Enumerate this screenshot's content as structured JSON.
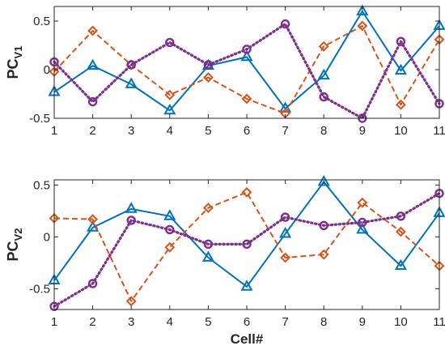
{
  "chart_data": [
    {
      "type": "line",
      "ylabel": "PC",
      "ylabel_subscript": "V1",
      "xlabel": "",
      "x": [
        1,
        2,
        3,
        4,
        5,
        6,
        7,
        8,
        9,
        10,
        11
      ],
      "xlim": [
        1,
        11
      ],
      "ylim": [
        -0.5,
        0.65
      ],
      "yticks": [
        -0.5,
        0,
        0.5
      ],
      "ytick_labels": [
        "-0.5",
        "0",
        "0.5"
      ],
      "xtick_labels": [
        "1",
        "2",
        "3",
        "4",
        "5",
        "6",
        "7",
        "8",
        "9",
        "10",
        "11"
      ],
      "grid": false,
      "series": [
        {
          "values": [
            -0.23,
            0.04,
            -0.15,
            -0.42,
            0.04,
            0.13,
            -0.4,
            -0.06,
            0.6,
            -0.01,
            0.45
          ],
          "color": "#0072BD",
          "line": "solid",
          "marker": "triangle"
        },
        {
          "values": [
            -0.02,
            0.4,
            0.05,
            -0.26,
            -0.08,
            -0.3,
            -0.45,
            0.24,
            0.45,
            -0.36,
            0.31
          ],
          "color": "#D95319",
          "line": "dashed",
          "marker": "diamond"
        },
        {
          "values": [
            0.08,
            -0.33,
            0.05,
            0.28,
            0.05,
            0.21,
            0.47,
            -0.28,
            -0.5,
            0.29,
            -0.35
          ],
          "color": "#7E2F8E",
          "line": "dotted",
          "marker": "circle"
        }
      ]
    },
    {
      "type": "line",
      "ylabel": "PC",
      "ylabel_subscript": "V2",
      "xlabel": "Cell#",
      "x": [
        1,
        2,
        3,
        4,
        5,
        6,
        7,
        8,
        9,
        10,
        11
      ],
      "xlim": [
        1,
        11
      ],
      "ylim": [
        -0.7,
        0.55
      ],
      "yticks": [
        -0.5,
        0,
        0.5
      ],
      "ytick_labels": [
        "-0.5",
        "0",
        "0.5"
      ],
      "xtick_labels": [
        "1",
        "2",
        "3",
        "4",
        "5",
        "6",
        "7",
        "8",
        "9",
        "10",
        "11"
      ],
      "grid": false,
      "series": [
        {
          "values": [
            -0.42,
            0.09,
            0.27,
            0.2,
            -0.2,
            -0.48,
            0.03,
            0.53,
            0.07,
            -0.28,
            0.23
          ],
          "color": "#0072BD",
          "line": "solid",
          "marker": "triangle"
        },
        {
          "values": [
            0.18,
            0.17,
            -0.62,
            -0.1,
            0.28,
            0.43,
            -0.2,
            -0.17,
            0.33,
            0.05,
            -0.28
          ],
          "color": "#D95319",
          "line": "dashed",
          "marker": "diamond"
        },
        {
          "values": [
            -0.67,
            -0.45,
            0.16,
            0.07,
            -0.07,
            -0.07,
            0.19,
            0.11,
            0.14,
            0.2,
            0.42
          ],
          "color": "#7E2F8E",
          "line": "dotted",
          "marker": "circle"
        }
      ]
    }
  ]
}
